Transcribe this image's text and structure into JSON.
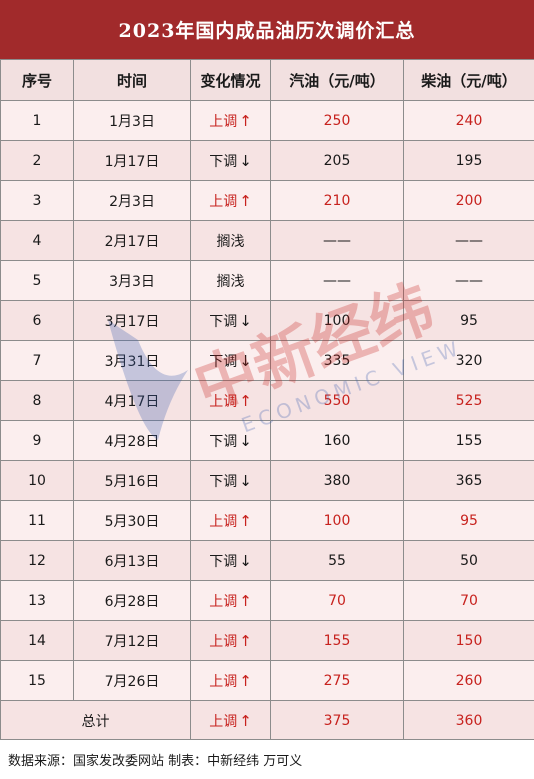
{
  "title": "2023年国内成品油历次调价汇总",
  "headers": {
    "seq": "序号",
    "date": "时间",
    "change": "变化情况",
    "gasoline": "汽油（元/吨）",
    "diesel": "柴油（元/吨）"
  },
  "rows": [
    {
      "seq": "1",
      "date": "1月3日",
      "change": "上调",
      "dir": "up",
      "gasoline": "250",
      "diesel": "240"
    },
    {
      "seq": "2",
      "date": "1月17日",
      "change": "下调",
      "dir": "down",
      "gasoline": "205",
      "diesel": "195"
    },
    {
      "seq": "3",
      "date": "2月3日",
      "change": "上调",
      "dir": "up",
      "gasoline": "210",
      "diesel": "200"
    },
    {
      "seq": "4",
      "date": "2月17日",
      "change": "搁浅",
      "dir": "none",
      "gasoline": "——",
      "diesel": "——"
    },
    {
      "seq": "5",
      "date": "3月3日",
      "change": "搁浅",
      "dir": "none",
      "gasoline": "——",
      "diesel": "——"
    },
    {
      "seq": "6",
      "date": "3月17日",
      "change": "下调",
      "dir": "down",
      "gasoline": "100",
      "diesel": "95"
    },
    {
      "seq": "7",
      "date": "3月31日",
      "change": "下调",
      "dir": "down",
      "gasoline": "335",
      "diesel": "320"
    },
    {
      "seq": "8",
      "date": "4月17日",
      "change": "上调",
      "dir": "up",
      "gasoline": "550",
      "diesel": "525"
    },
    {
      "seq": "9",
      "date": "4月28日",
      "change": "下调",
      "dir": "down",
      "gasoline": "160",
      "diesel": "155"
    },
    {
      "seq": "10",
      "date": "5月16日",
      "change": "下调",
      "dir": "down",
      "gasoline": "380",
      "diesel": "365"
    },
    {
      "seq": "11",
      "date": "5月30日",
      "change": "上调",
      "dir": "up",
      "gasoline": "100",
      "diesel": "95"
    },
    {
      "seq": "12",
      "date": "6月13日",
      "change": "下调",
      "dir": "down",
      "gasoline": "55",
      "diesel": "50"
    },
    {
      "seq": "13",
      "date": "6月28日",
      "change": "上调",
      "dir": "up",
      "gasoline": "70",
      "diesel": "70"
    },
    {
      "seq": "14",
      "date": "7月12日",
      "change": "上调",
      "dir": "up",
      "gasoline": "155",
      "diesel": "150"
    },
    {
      "seq": "15",
      "date": "7月26日",
      "change": "上调",
      "dir": "up",
      "gasoline": "275",
      "diesel": "260"
    }
  ],
  "total": {
    "label": "总计",
    "change": "上调",
    "dir": "up",
    "gasoline": "375",
    "diesel": "360"
  },
  "source_note": "数据来源：国家发改委网站  制表：中新经纬  万可义",
  "watermark": {
    "logo_text": "中新经纬",
    "sub_text": "ECONOMIC VIEW"
  },
  "arrows": {
    "up": "↑",
    "down": "↓"
  },
  "colors": {
    "title_bg": "#a12a2b",
    "up": "#c7221e",
    "body_bg": "#f2e0e0"
  }
}
